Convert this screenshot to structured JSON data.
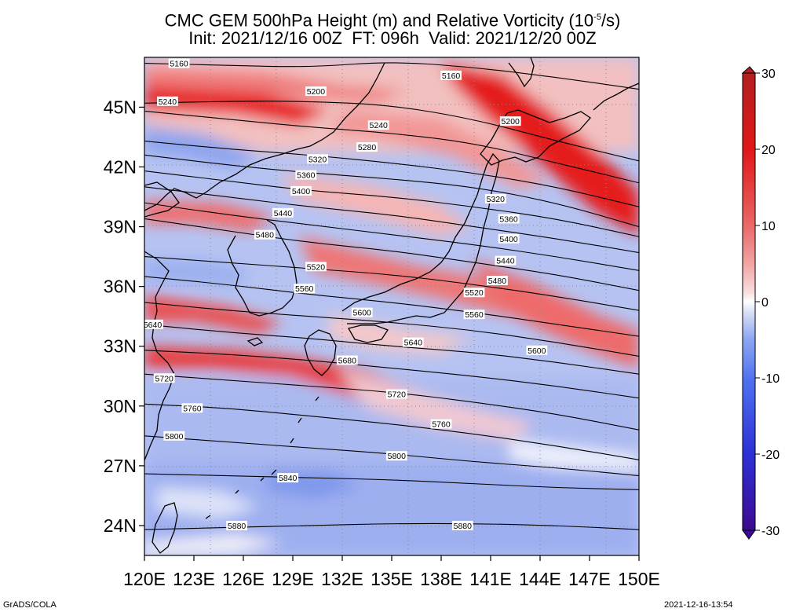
{
  "title": {
    "line1": "CMC GEM 500hPa Height (m) and Relative Vorticity (10",
    "line1_exp": "-5",
    "line1_end": "/s)",
    "line2": "Init: 2021/12/16 00Z  FT: 096h  Valid: 2021/12/20 00Z"
  },
  "axes": {
    "lon_labels": [
      "120E",
      "123E",
      "126E",
      "129E",
      "132E",
      "135E",
      "138E",
      "141E",
      "144E",
      "147E",
      "150E"
    ],
    "lat_labels": [
      "45N",
      "42N",
      "39N",
      "36N",
      "33N",
      "30N",
      "27N",
      "24N"
    ],
    "lon_range": [
      120,
      150
    ],
    "lat_range": [
      22.5,
      47.5
    ]
  },
  "contours": [
    {
      "label": "5160",
      "lat": [
        47.2,
        47.1,
        47.0,
        47.3,
        47.0,
        46.5,
        45.9
      ],
      "lon": [
        120,
        125,
        130,
        135,
        140,
        145,
        150
      ]
    },
    {
      "label": "5200",
      "lat": [
        45.2,
        45.3,
        45.3,
        45.1,
        44.4,
        43.3,
        42.3
      ],
      "lon": [
        120,
        125,
        130,
        135,
        140,
        145,
        150
      ]
    },
    {
      "label": "5240",
      "lat": [
        44.8,
        44.4,
        44.0,
        43.7,
        43.2,
        42.2,
        41.2
      ],
      "lon": [
        120,
        125,
        130,
        135,
        140,
        145,
        150
      ]
    },
    {
      "label": "5280",
      "lat": [
        43.3,
        42.9,
        42.6,
        42.2,
        41.7,
        41.0,
        40.0
      ],
      "lon": [
        120,
        125,
        130,
        135,
        140,
        145,
        150
      ]
    },
    {
      "label": "5320",
      "lat": [
        42.6,
        42.1,
        41.7,
        41.4,
        41.0,
        40.2,
        39.0
      ],
      "lon": [
        120,
        125,
        130,
        135,
        140,
        145,
        150
      ]
    },
    {
      "label": "5360",
      "lat": [
        41.8,
        41.3,
        40.8,
        40.5,
        40.0,
        39.4,
        38.5
      ],
      "lon": [
        120,
        125,
        130,
        135,
        140,
        145,
        150
      ]
    },
    {
      "label": "5400",
      "lat": [
        41.0,
        40.5,
        40.0,
        39.6,
        39.0,
        38.4,
        37.7
      ],
      "lon": [
        120,
        125,
        130,
        135,
        140,
        145,
        150
      ]
    },
    {
      "label": "5440",
      "lat": [
        40.2,
        39.6,
        39.1,
        38.6,
        38.1,
        37.5,
        36.8
      ],
      "lon": [
        120,
        125,
        130,
        135,
        140,
        145,
        150
      ]
    },
    {
      "label": "5480",
      "lat": [
        39.4,
        38.8,
        38.2,
        37.8,
        37.2,
        36.6,
        35.8
      ],
      "lon": [
        120,
        125,
        130,
        135,
        140,
        145,
        150
      ]
    },
    {
      "label": "5520",
      "lat": [
        37.5,
        37.2,
        36.9,
        36.6,
        36.1,
        35.5,
        34.8
      ],
      "lon": [
        120,
        125,
        130,
        135,
        140,
        145,
        150
      ]
    },
    {
      "label": "5560",
      "lat": [
        36.5,
        36.1,
        35.6,
        35.2,
        34.7,
        34.1,
        33.5
      ],
      "lon": [
        120,
        125,
        130,
        135,
        140,
        145,
        150
      ]
    },
    {
      "label": "5600",
      "lat": [
        35.2,
        34.8,
        34.5,
        34.2,
        33.8,
        33.2,
        32.5
      ],
      "lon": [
        120,
        125,
        130,
        135,
        140,
        145,
        150
      ]
    },
    {
      "label": "5640",
      "lat": [
        34.1,
        33.7,
        33.4,
        33.0,
        32.7,
        32.2,
        31.6
      ],
      "lon": [
        120,
        125,
        130,
        135,
        140,
        145,
        150
      ]
    },
    {
      "label": "5680",
      "lat": [
        32.8,
        32.6,
        32.3,
        31.9,
        31.5,
        31.0,
        30.4
      ],
      "lon": [
        120,
        125,
        130,
        135,
        140,
        145,
        150
      ]
    },
    {
      "label": "5720",
      "lat": [
        31.6,
        31.3,
        31.0,
        30.7,
        30.2,
        29.6,
        28.8
      ],
      "lon": [
        120,
        125,
        130,
        135,
        140,
        145,
        150
      ]
    },
    {
      "label": "5760",
      "lat": [
        30.1,
        29.9,
        29.5,
        29.1,
        28.6,
        28.0,
        27.3
      ],
      "lon": [
        120,
        125,
        130,
        135,
        140,
        145,
        150
      ]
    },
    {
      "label": "5800",
      "lat": [
        28.5,
        28.2,
        27.9,
        27.6,
        27.2,
        26.9,
        26.5
      ],
      "lon": [
        120,
        125,
        130,
        135,
        140,
        145,
        150
      ]
    },
    {
      "label": "5840",
      "lat": [
        26.6,
        26.5,
        26.4,
        26.3,
        26.1,
        25.9,
        25.8
      ],
      "lon": [
        120,
        125,
        130,
        135,
        140,
        145,
        150
      ]
    },
    {
      "label": "5880",
      "lat": [
        23.8,
        23.9,
        24.0,
        24.1,
        24.1,
        24.0,
        23.8
      ],
      "lon": [
        120,
        125,
        130,
        135,
        140,
        145,
        150
      ]
    }
  ],
  "contour_label_positions": [
    {
      "label": "5160",
      "lon": 122.1,
      "lat": 47.2
    },
    {
      "label": "5240",
      "lon": 121.4,
      "lat": 45.3
    },
    {
      "label": "5200",
      "lon": 130.4,
      "lat": 45.8
    },
    {
      "label": "5160",
      "lon": 138.6,
      "lat": 46.6
    },
    {
      "label": "5240",
      "lon": 134.2,
      "lat": 44.1
    },
    {
      "label": "5200",
      "lon": 142.2,
      "lat": 44.3
    },
    {
      "label": "5280",
      "lon": 133.5,
      "lat": 43.0
    },
    {
      "label": "5320",
      "lon": 130.5,
      "lat": 42.4
    },
    {
      "label": "5360",
      "lon": 129.8,
      "lat": 41.6
    },
    {
      "label": "5400",
      "lon": 129.5,
      "lat": 40.8
    },
    {
      "label": "5320",
      "lon": 141.3,
      "lat": 40.4
    },
    {
      "label": "5440",
      "lon": 128.4,
      "lat": 39.7
    },
    {
      "label": "5360",
      "lon": 142.1,
      "lat": 39.4
    },
    {
      "label": "5480",
      "lon": 127.3,
      "lat": 38.6
    },
    {
      "label": "5400",
      "lon": 142.1,
      "lat": 38.4
    },
    {
      "label": "5440",
      "lon": 141.9,
      "lat": 37.3
    },
    {
      "label": "5520",
      "lon": 130.4,
      "lat": 37.0
    },
    {
      "label": "5480",
      "lon": 141.4,
      "lat": 36.3
    },
    {
      "label": "5560",
      "lon": 129.7,
      "lat": 35.9
    },
    {
      "label": "5520",
      "lon": 140.0,
      "lat": 35.7
    },
    {
      "label": "5600",
      "lon": 133.2,
      "lat": 34.7
    },
    {
      "label": "5560",
      "lon": 140.0,
      "lat": 34.6
    },
    {
      "label": "5640",
      "lon": 120.5,
      "lat": 34.1
    },
    {
      "label": "5640",
      "lon": 136.3,
      "lat": 33.2
    },
    {
      "label": "5600",
      "lon": 143.8,
      "lat": 32.8
    },
    {
      "label": "5680",
      "lon": 132.3,
      "lat": 32.3
    },
    {
      "label": "5720",
      "lon": 121.2,
      "lat": 31.4
    },
    {
      "label": "5720",
      "lon": 135.3,
      "lat": 30.6
    },
    {
      "label": "5760",
      "lon": 122.9,
      "lat": 29.9
    },
    {
      "label": "5760",
      "lon": 138.0,
      "lat": 29.1
    },
    {
      "label": "5800",
      "lon": 121.8,
      "lat": 28.5
    },
    {
      "label": "5800",
      "lon": 135.3,
      "lat": 27.5
    },
    {
      "label": "5840",
      "lon": 128.7,
      "lat": 26.4
    },
    {
      "label": "5880",
      "lon": 125.6,
      "lat": 24.0
    },
    {
      "label": "5880",
      "lon": 139.3,
      "lat": 24.0
    }
  ],
  "colorbar": {
    "min": -30,
    "max": 30,
    "tick_labels": [
      "30",
      "20",
      "10",
      "0",
      "-10",
      "-20",
      "-30"
    ],
    "colors": [
      "#3d0a91",
      "#2d32d6",
      "#4f72f0",
      "#8ea7f2",
      "#c8d2f4",
      "#ffffff",
      "#f6c6c6",
      "#ef8d8d",
      "#e84545",
      "#d9201f",
      "#b3191a"
    ]
  },
  "footer": {
    "left": "GrADS/COLA",
    "right": "2021-12-16-13:54"
  }
}
